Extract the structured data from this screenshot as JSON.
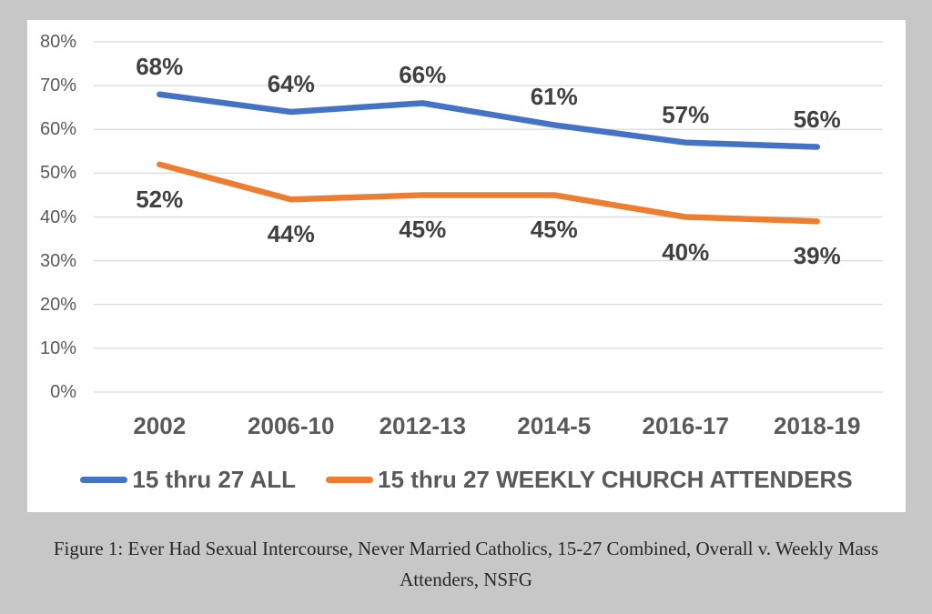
{
  "figure": {
    "caption_line1": "Figure 1: Ever Had Sexual Intercourse, Never Married Catholics, 15-27 Combined, Overall v. Weekly Mass",
    "caption_line2": "Attenders, NSFG"
  },
  "colors": {
    "page_background": "#c7c7c7",
    "chart_background": "#ffffff",
    "gridline": "#d9d9d9",
    "axis_text": "#595959",
    "data_label_text": "#404040",
    "series_blue": "#4472C4",
    "series_orange": "#ED7D31"
  },
  "chart_data": {
    "type": "line",
    "title": "",
    "categories": [
      "2002",
      "2006-10",
      "2012-13",
      "2014-5",
      "2016-17",
      "2018-19"
    ],
    "series": [
      {
        "name": "15 thru 27 ALL",
        "color": "#4472C4",
        "values": [
          68,
          64,
          66,
          61,
          57,
          56
        ],
        "data_labels": [
          "68%",
          "64%",
          "66%",
          "61%",
          "57%",
          "56%"
        ],
        "label_position": "above"
      },
      {
        "name": "15 thru 27 WEEKLY CHURCH ATTENDERS",
        "color": "#ED7D31",
        "values": [
          52,
          44,
          45,
          45,
          40,
          39
        ],
        "data_labels": [
          "52%",
          "44%",
          "45%",
          "45%",
          "40%",
          "39%"
        ],
        "label_position": "below"
      }
    ],
    "y_axis": {
      "min": 0,
      "max": 80,
      "tick_step": 10,
      "tick_labels": [
        "0%",
        "10%",
        "20%",
        "30%",
        "40%",
        "50%",
        "60%",
        "70%",
        "80%"
      ]
    },
    "x_axis_label": "",
    "y_axis_label": "",
    "grid": "horizontal",
    "legend_position": "bottom"
  }
}
